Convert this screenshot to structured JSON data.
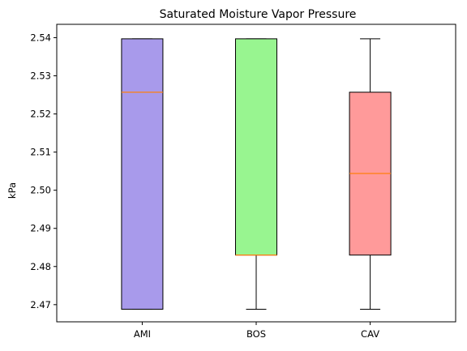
{
  "chart_data": {
    "type": "box",
    "title": "Saturated Moisture Vapor Pressure",
    "xlabel": "",
    "ylabel": "kPa",
    "ylim": [
      2.4655,
      2.5435
    ],
    "yticks": [
      "2.47",
      "2.48",
      "2.49",
      "2.50",
      "2.51",
      "2.52",
      "2.53",
      "2.54"
    ],
    "grid": false,
    "categories": [
      "AMI",
      "BOS",
      "CAV"
    ],
    "boxes": [
      {
        "name": "AMI",
        "whisker_low": 2.4688,
        "q1": 2.4688,
        "median": 2.5257,
        "q3": 2.5397,
        "whisker_high": 2.5397,
        "color": "#a89aeb"
      },
      {
        "name": "BOS",
        "whisker_low": 2.4688,
        "q1": 2.483,
        "median": 2.483,
        "q3": 2.5397,
        "whisker_high": 2.5397,
        "color": "#98f590"
      },
      {
        "name": "CAV",
        "whisker_low": 2.4688,
        "q1": 2.483,
        "median": 2.5044,
        "q3": 2.5257,
        "whisker_high": 2.5397,
        "color": "#ff9a9a"
      }
    ],
    "median_color": "#ff7f0e"
  }
}
